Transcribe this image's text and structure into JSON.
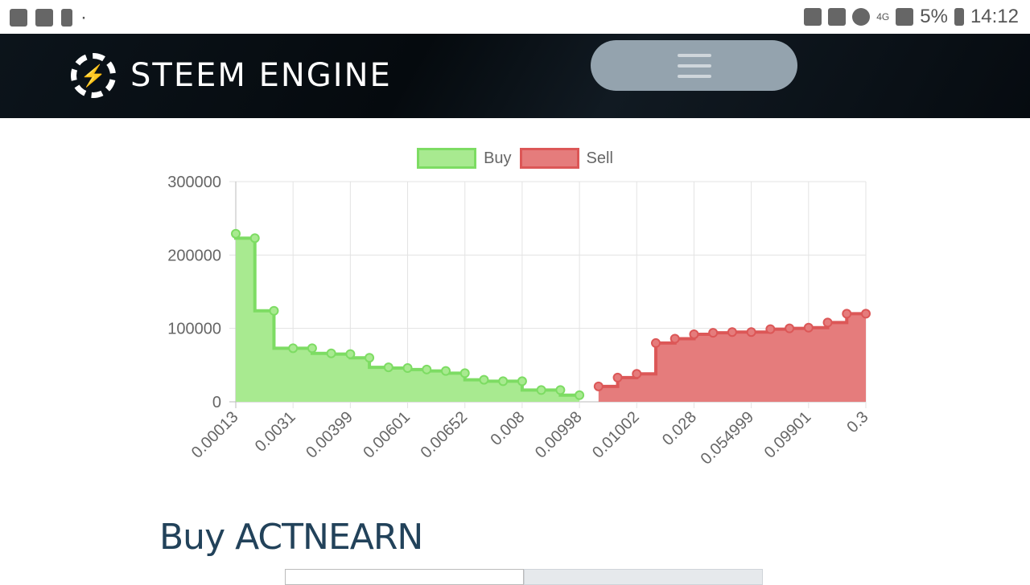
{
  "status_bar": {
    "battery": "5%",
    "time": "14:12",
    "network": "4G"
  },
  "header": {
    "brand": "STEEM ENGINE"
  },
  "colors": {
    "buy_fill": "#a8ea90",
    "buy_line": "#7ddc63",
    "sell_fill": "#e57c7c",
    "sell_line": "#dc5757"
  },
  "chart_data": {
    "type": "area",
    "stepped": true,
    "legend": [
      "Buy",
      "Sell"
    ],
    "legend_position": "top",
    "grid": true,
    "ylim": [
      0,
      300000
    ],
    "y_ticks": [
      "0",
      "100000",
      "200000",
      "300000"
    ],
    "x_tick_labels": [
      "0.00013",
      "0.0031",
      "0.00399",
      "0.00601",
      "0.00652",
      "0.008",
      "0.00998",
      "0.01002",
      "0.028",
      "0.054999",
      "0.09901",
      "0.3"
    ],
    "series": [
      {
        "name": "Buy",
        "values": [
          229000,
          223000,
          124000,
          73000,
          73000,
          66000,
          65000,
          60000,
          47000,
          46000,
          44000,
          42000,
          39000,
          30000,
          28000,
          28000,
          16000,
          16000,
          9000
        ]
      },
      {
        "name": "Sell",
        "values": [
          21000,
          33000,
          38000,
          80000,
          86000,
          92000,
          94000,
          95000,
          95000,
          99000,
          100000,
          101000,
          108000,
          120000,
          120000
        ]
      }
    ]
  },
  "section": {
    "title": "Buy ACTNEARN"
  }
}
